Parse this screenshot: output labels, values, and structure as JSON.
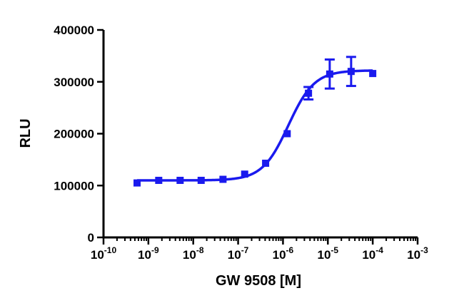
{
  "chart_data": {
    "type": "scatter",
    "xlabel": "GW 9508 [M]",
    "ylabel": "RLU",
    "x_scale": "log10",
    "xlim": [
      1e-10,
      0.001
    ],
    "ylim": [
      0,
      400000
    ],
    "x_ticks": [
      {
        "value": 1e-10,
        "base": "10",
        "exp": "-10"
      },
      {
        "value": 1e-09,
        "base": "10",
        "exp": "-9"
      },
      {
        "value": 1e-08,
        "base": "10",
        "exp": "-8"
      },
      {
        "value": 1e-07,
        "base": "10",
        "exp": "-7"
      },
      {
        "value": 1e-06,
        "base": "10",
        "exp": "-6"
      },
      {
        "value": 1e-05,
        "base": "10",
        "exp": "-5"
      },
      {
        "value": 0.0001,
        "base": "10",
        "exp": "-4"
      },
      {
        "value": 0.001,
        "base": "10",
        "exp": "-3"
      }
    ],
    "y_ticks": [
      {
        "value": 0,
        "label": "0"
      },
      {
        "value": 100000,
        "label": "100000"
      },
      {
        "value": 200000,
        "label": "200000"
      },
      {
        "value": 300000,
        "label": "300000"
      },
      {
        "value": 400000,
        "label": "400000"
      }
    ],
    "color": "#1a1aee",
    "points": [
      {
        "x": 5.6e-10,
        "y": 105000,
        "err": 0
      },
      {
        "x": 1.7e-09,
        "y": 110000,
        "err": 0
      },
      {
        "x": 5.1e-09,
        "y": 110000,
        "err": 0
      },
      {
        "x": 1.5e-08,
        "y": 110000,
        "err": 0
      },
      {
        "x": 4.6e-08,
        "y": 112000,
        "err": 0
      },
      {
        "x": 1.4e-07,
        "y": 122000,
        "err": 0
      },
      {
        "x": 4.1e-07,
        "y": 143000,
        "err": 0
      },
      {
        "x": 1.24e-06,
        "y": 200000,
        "err": 0
      },
      {
        "x": 3.7e-06,
        "y": 278000,
        "err": 12000
      },
      {
        "x": 1.1e-05,
        "y": 315000,
        "err": 28000
      },
      {
        "x": 3.3e-05,
        "y": 320000,
        "err": 28000
      },
      {
        "x": 0.0001,
        "y": 316000,
        "err": 0
      }
    ],
    "fit": {
      "bottom": 110000,
      "top": 322000,
      "log_ec50": -5.88,
      "hill": 1.5
    }
  }
}
